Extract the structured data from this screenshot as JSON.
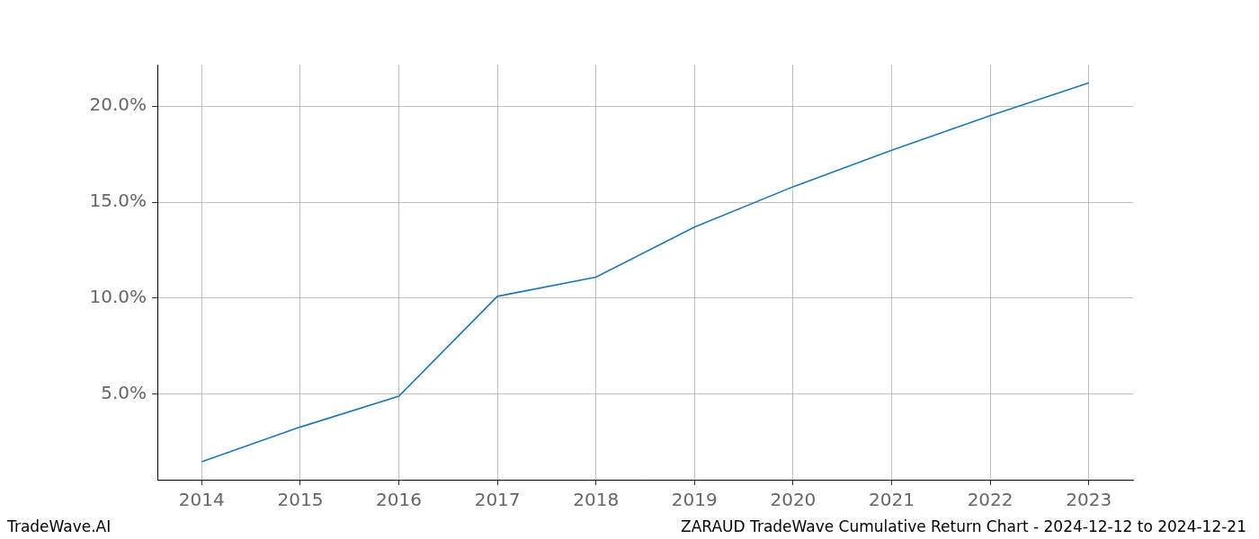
{
  "chart_data": {
    "type": "line",
    "x": [
      2014,
      2015,
      2016,
      2017,
      2018,
      2019,
      2020,
      2021,
      2022,
      2023
    ],
    "values": [
      1.5,
      3.3,
      4.9,
      10.1,
      11.1,
      13.7,
      15.8,
      17.7,
      19.5,
      21.2
    ],
    "color": "#1f77b4",
    "xlim": [
      2013.55,
      2023.45
    ],
    "xticks": [
      2014,
      2015,
      2016,
      2017,
      2018,
      2019,
      2020,
      2021,
      2022,
      2023
    ],
    "ylim": [
      0.56,
      22.15
    ],
    "yticks": [
      {
        "value": 5,
        "label": "5.0%"
      },
      {
        "value": 10,
        "label": "10.0%"
      },
      {
        "value": 15,
        "label": "15.0%"
      },
      {
        "value": 20,
        "label": "20.0%"
      }
    ],
    "grid": true,
    "annotations": [
      "TradeWave.AI",
      "ZARAUD TradeWave Cumulative Return Chart - 2024-12-12 to 2024-12-21"
    ]
  }
}
